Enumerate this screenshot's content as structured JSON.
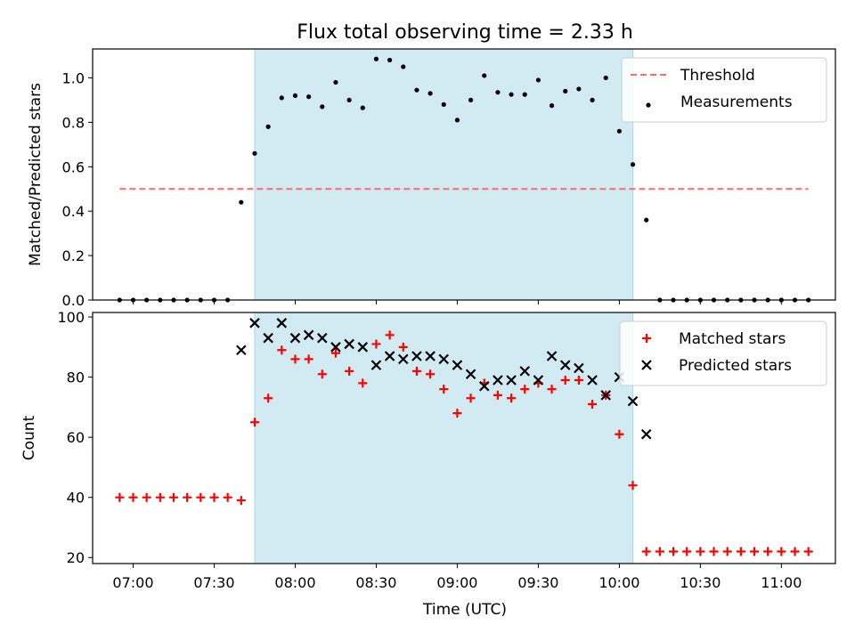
{
  "chart_data": [
    {
      "type": "scatter",
      "title": "Flux total observing time = 2.33 h",
      "xlabel": "",
      "ylabel": "Matched/Predicted stars",
      "xlim": [
        "06:45",
        "11:20"
      ],
      "ylim": [
        0,
        1.13
      ],
      "yticks": [
        "0.0",
        "0.2",
        "0.4",
        "0.6",
        "0.8",
        "1.0"
      ],
      "legend_position": "top-right",
      "shaded_interval": {
        "start": "07:45",
        "end": "10:05",
        "color": "#add8e6"
      },
      "threshold": {
        "name": "Threshold",
        "value": 0.5,
        "from": "06:55",
        "to": "11:10",
        "color": "#ff6b6b",
        "style": "dashed"
      },
      "series": [
        {
          "name": "Measurements",
          "color": "#000000",
          "marker": "dot",
          "points": [
            [
              "06:55",
              0.0
            ],
            [
              "07:00",
              0.0
            ],
            [
              "07:05",
              0.0
            ],
            [
              "07:10",
              0.0
            ],
            [
              "07:15",
              0.0
            ],
            [
              "07:20",
              0.0
            ],
            [
              "07:25",
              0.0
            ],
            [
              "07:30",
              0.0
            ],
            [
              "07:35",
              0.0
            ],
            [
              "07:40",
              0.44
            ],
            [
              "07:45",
              0.66
            ],
            [
              "07:50",
              0.78
            ],
            [
              "07:55",
              0.91
            ],
            [
              "08:00",
              0.92
            ],
            [
              "08:05",
              0.915
            ],
            [
              "08:10",
              0.87
            ],
            [
              "08:15",
              0.98
            ],
            [
              "08:20",
              0.9
            ],
            [
              "08:25",
              0.865
            ],
            [
              "08:30",
              1.085
            ],
            [
              "08:35",
              1.08
            ],
            [
              "08:40",
              1.05
            ],
            [
              "08:45",
              0.945
            ],
            [
              "08:50",
              0.93
            ],
            [
              "08:55",
              0.88
            ],
            [
              "09:00",
              0.81
            ],
            [
              "09:05",
              0.9
            ],
            [
              "09:10",
              1.01
            ],
            [
              "09:15",
              0.935
            ],
            [
              "09:20",
              0.925
            ],
            [
              "09:25",
              0.925
            ],
            [
              "09:30",
              0.99
            ],
            [
              "09:35",
              0.875
            ],
            [
              "09:40",
              0.94
            ],
            [
              "09:45",
              0.95
            ],
            [
              "09:50",
              0.9
            ],
            [
              "09:55",
              1.0
            ],
            [
              "10:00",
              0.76
            ],
            [
              "10:05",
              0.61
            ],
            [
              "10:10",
              0.36
            ],
            [
              "10:15",
              0.0
            ],
            [
              "10:20",
              0.0
            ],
            [
              "10:25",
              0.0
            ],
            [
              "10:30",
              0.0
            ],
            [
              "10:35",
              0.0
            ],
            [
              "10:40",
              0.0
            ],
            [
              "10:45",
              0.0
            ],
            [
              "10:50",
              0.0
            ],
            [
              "10:55",
              0.0
            ],
            [
              "11:00",
              0.0
            ],
            [
              "11:05",
              0.0
            ],
            [
              "11:10",
              0.0
            ]
          ]
        }
      ]
    },
    {
      "type": "scatter",
      "title": "",
      "xlabel": "Time (UTC)",
      "ylabel": "Count",
      "xlim": [
        "06:45",
        "11:20"
      ],
      "ylim": [
        18,
        101.5
      ],
      "yticks": [
        "20",
        "40",
        "60",
        "80",
        "100"
      ],
      "xticks": [
        "07:00",
        "07:30",
        "08:00",
        "08:30",
        "09:00",
        "09:30",
        "10:00",
        "10:30",
        "11:00"
      ],
      "legend_position": "top-right",
      "shaded_interval": {
        "start": "07:45",
        "end": "10:05",
        "color": "#add8e6"
      },
      "series": [
        {
          "name": "Matched stars",
          "color": "#ff0000",
          "marker": "plus",
          "points": [
            [
              "06:55",
              40
            ],
            [
              "07:00",
              40
            ],
            [
              "07:05",
              40
            ],
            [
              "07:10",
              40
            ],
            [
              "07:15",
              40
            ],
            [
              "07:20",
              40
            ],
            [
              "07:25",
              40
            ],
            [
              "07:30",
              40
            ],
            [
              "07:35",
              40
            ],
            [
              "07:40",
              39
            ],
            [
              "07:45",
              65
            ],
            [
              "07:50",
              73
            ],
            [
              "07:55",
              89
            ],
            [
              "08:00",
              86
            ],
            [
              "08:05",
              86
            ],
            [
              "08:10",
              81
            ],
            [
              "08:15",
              88
            ],
            [
              "08:20",
              82
            ],
            [
              "08:25",
              78
            ],
            [
              "08:30",
              91
            ],
            [
              "08:35",
              94
            ],
            [
              "08:40",
              90
            ],
            [
              "08:45",
              82
            ],
            [
              "08:50",
              81
            ],
            [
              "08:55",
              76
            ],
            [
              "09:00",
              68
            ],
            [
              "09:05",
              73
            ],
            [
              "09:10",
              78
            ],
            [
              "09:15",
              74
            ],
            [
              "09:20",
              73
            ],
            [
              "09:25",
              76
            ],
            [
              "09:30",
              78
            ],
            [
              "09:35",
              76
            ],
            [
              "09:40",
              79
            ],
            [
              "09:45",
              79
            ],
            [
              "09:50",
              71
            ],
            [
              "09:55",
              74
            ],
            [
              "10:00",
              61
            ],
            [
              "10:05",
              44
            ],
            [
              "10:10",
              22
            ],
            [
              "10:15",
              22
            ],
            [
              "10:20",
              22
            ],
            [
              "10:25",
              22
            ],
            [
              "10:30",
              22
            ],
            [
              "10:35",
              22
            ],
            [
              "10:40",
              22
            ],
            [
              "10:45",
              22
            ],
            [
              "10:50",
              22
            ],
            [
              "10:55",
              22
            ],
            [
              "11:00",
              22
            ],
            [
              "11:05",
              22
            ],
            [
              "11:10",
              22
            ]
          ]
        },
        {
          "name": "Predicted stars",
          "color": "#000000",
          "marker": "x",
          "points": [
            [
              "07:40",
              89
            ],
            [
              "07:45",
              98
            ],
            [
              "07:50",
              93
            ],
            [
              "07:55",
              98
            ],
            [
              "08:00",
              93
            ],
            [
              "08:05",
              94
            ],
            [
              "08:10",
              93
            ],
            [
              "08:15",
              90
            ],
            [
              "08:20",
              91
            ],
            [
              "08:25",
              90
            ],
            [
              "08:30",
              84
            ],
            [
              "08:35",
              87
            ],
            [
              "08:40",
              86
            ],
            [
              "08:45",
              87
            ],
            [
              "08:50",
              87
            ],
            [
              "08:55",
              86
            ],
            [
              "09:00",
              84
            ],
            [
              "09:05",
              81
            ],
            [
              "09:10",
              77
            ],
            [
              "09:15",
              79
            ],
            [
              "09:20",
              79
            ],
            [
              "09:25",
              82
            ],
            [
              "09:30",
              79
            ],
            [
              "09:35",
              87
            ],
            [
              "09:40",
              84
            ],
            [
              "09:45",
              83
            ],
            [
              "09:50",
              79
            ],
            [
              "09:55",
              74
            ],
            [
              "10:00",
              80
            ],
            [
              "10:05",
              72
            ],
            [
              "10:10",
              61
            ]
          ]
        }
      ]
    }
  ]
}
